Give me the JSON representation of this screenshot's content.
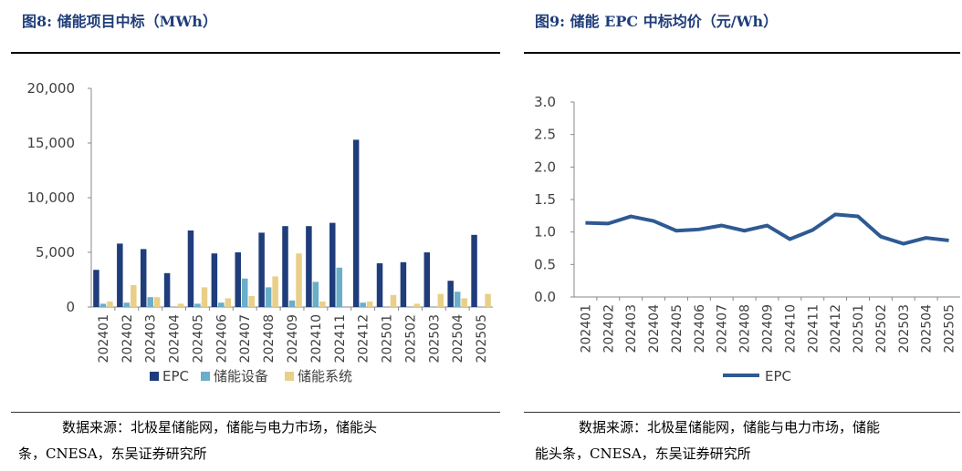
{
  "left_panel": {
    "figure_label": "图8:",
    "title": "储能项目中标（MWh）",
    "source_line1": "数据来源：北极星储能网，储能与电力市场，储能头",
    "source_line2": "条，CNESA，东吴证券研究所"
  },
  "right_panel": {
    "figure_label": "图9:",
    "title": "储能 EPC 中标均价（元/Wh）",
    "source_line1": "数据来源：北极星储能网，储能与电力市场，储能",
    "source_line2": "能头条，CNESA，东吴证券研究所"
  },
  "chart_data": [
    {
      "type": "bar",
      "categories": [
        "202401",
        "202402",
        "202403",
        "202404",
        "202405",
        "202406",
        "202407",
        "202408",
        "202409",
        "202410",
        "202411",
        "202412",
        "202501",
        "202502",
        "202503",
        "202504",
        "202505"
      ],
      "series": [
        {
          "name": "EPC",
          "color": "#1f3d7a",
          "values": [
            3400,
            5800,
            5300,
            3100,
            7000,
            4900,
            5000,
            6800,
            7400,
            7400,
            7700,
            15300,
            4000,
            4100,
            5000,
            2400,
            6600
          ]
        },
        {
          "name": "储能设备",
          "color": "#6aaec9",
          "values": [
            300,
            400,
            900,
            0,
            300,
            400,
            2600,
            1800,
            600,
            2300,
            3600,
            400,
            0,
            0,
            0,
            1400,
            0
          ]
        },
        {
          "name": "储能系统",
          "color": "#e9cf87",
          "values": [
            500,
            2000,
            900,
            300,
            1800,
            800,
            1000,
            2800,
            4900,
            500,
            0,
            500,
            1100,
            300,
            1200,
            800,
            1200
          ]
        }
      ],
      "ylim": [
        0,
        20000
      ],
      "yticks": [
        "0",
        "5,000",
        "10,000",
        "15,000",
        "20,000"
      ],
      "legend_position": "bottom"
    },
    {
      "type": "line",
      "x": [
        "202401",
        "202402",
        "202403",
        "202404",
        "202405",
        "202406",
        "202407",
        "202408",
        "202409",
        "202410",
        "202411",
        "202412",
        "202501",
        "202502",
        "202503",
        "202504",
        "202505"
      ],
      "series": [
        {
          "name": "EPC",
          "color": "#2e5a93",
          "values": [
            1.14,
            1.13,
            1.24,
            1.17,
            1.02,
            1.04,
            1.1,
            1.02,
            1.1,
            0.89,
            1.03,
            1.27,
            1.24,
            0.93,
            0.82,
            0.91,
            0.87
          ]
        }
      ],
      "ylim": [
        0,
        3.0
      ],
      "yticks": [
        "0.0",
        "0.5",
        "1.0",
        "1.5",
        "2.0",
        "2.5",
        "3.0"
      ],
      "legend_position": "bottom"
    }
  ]
}
